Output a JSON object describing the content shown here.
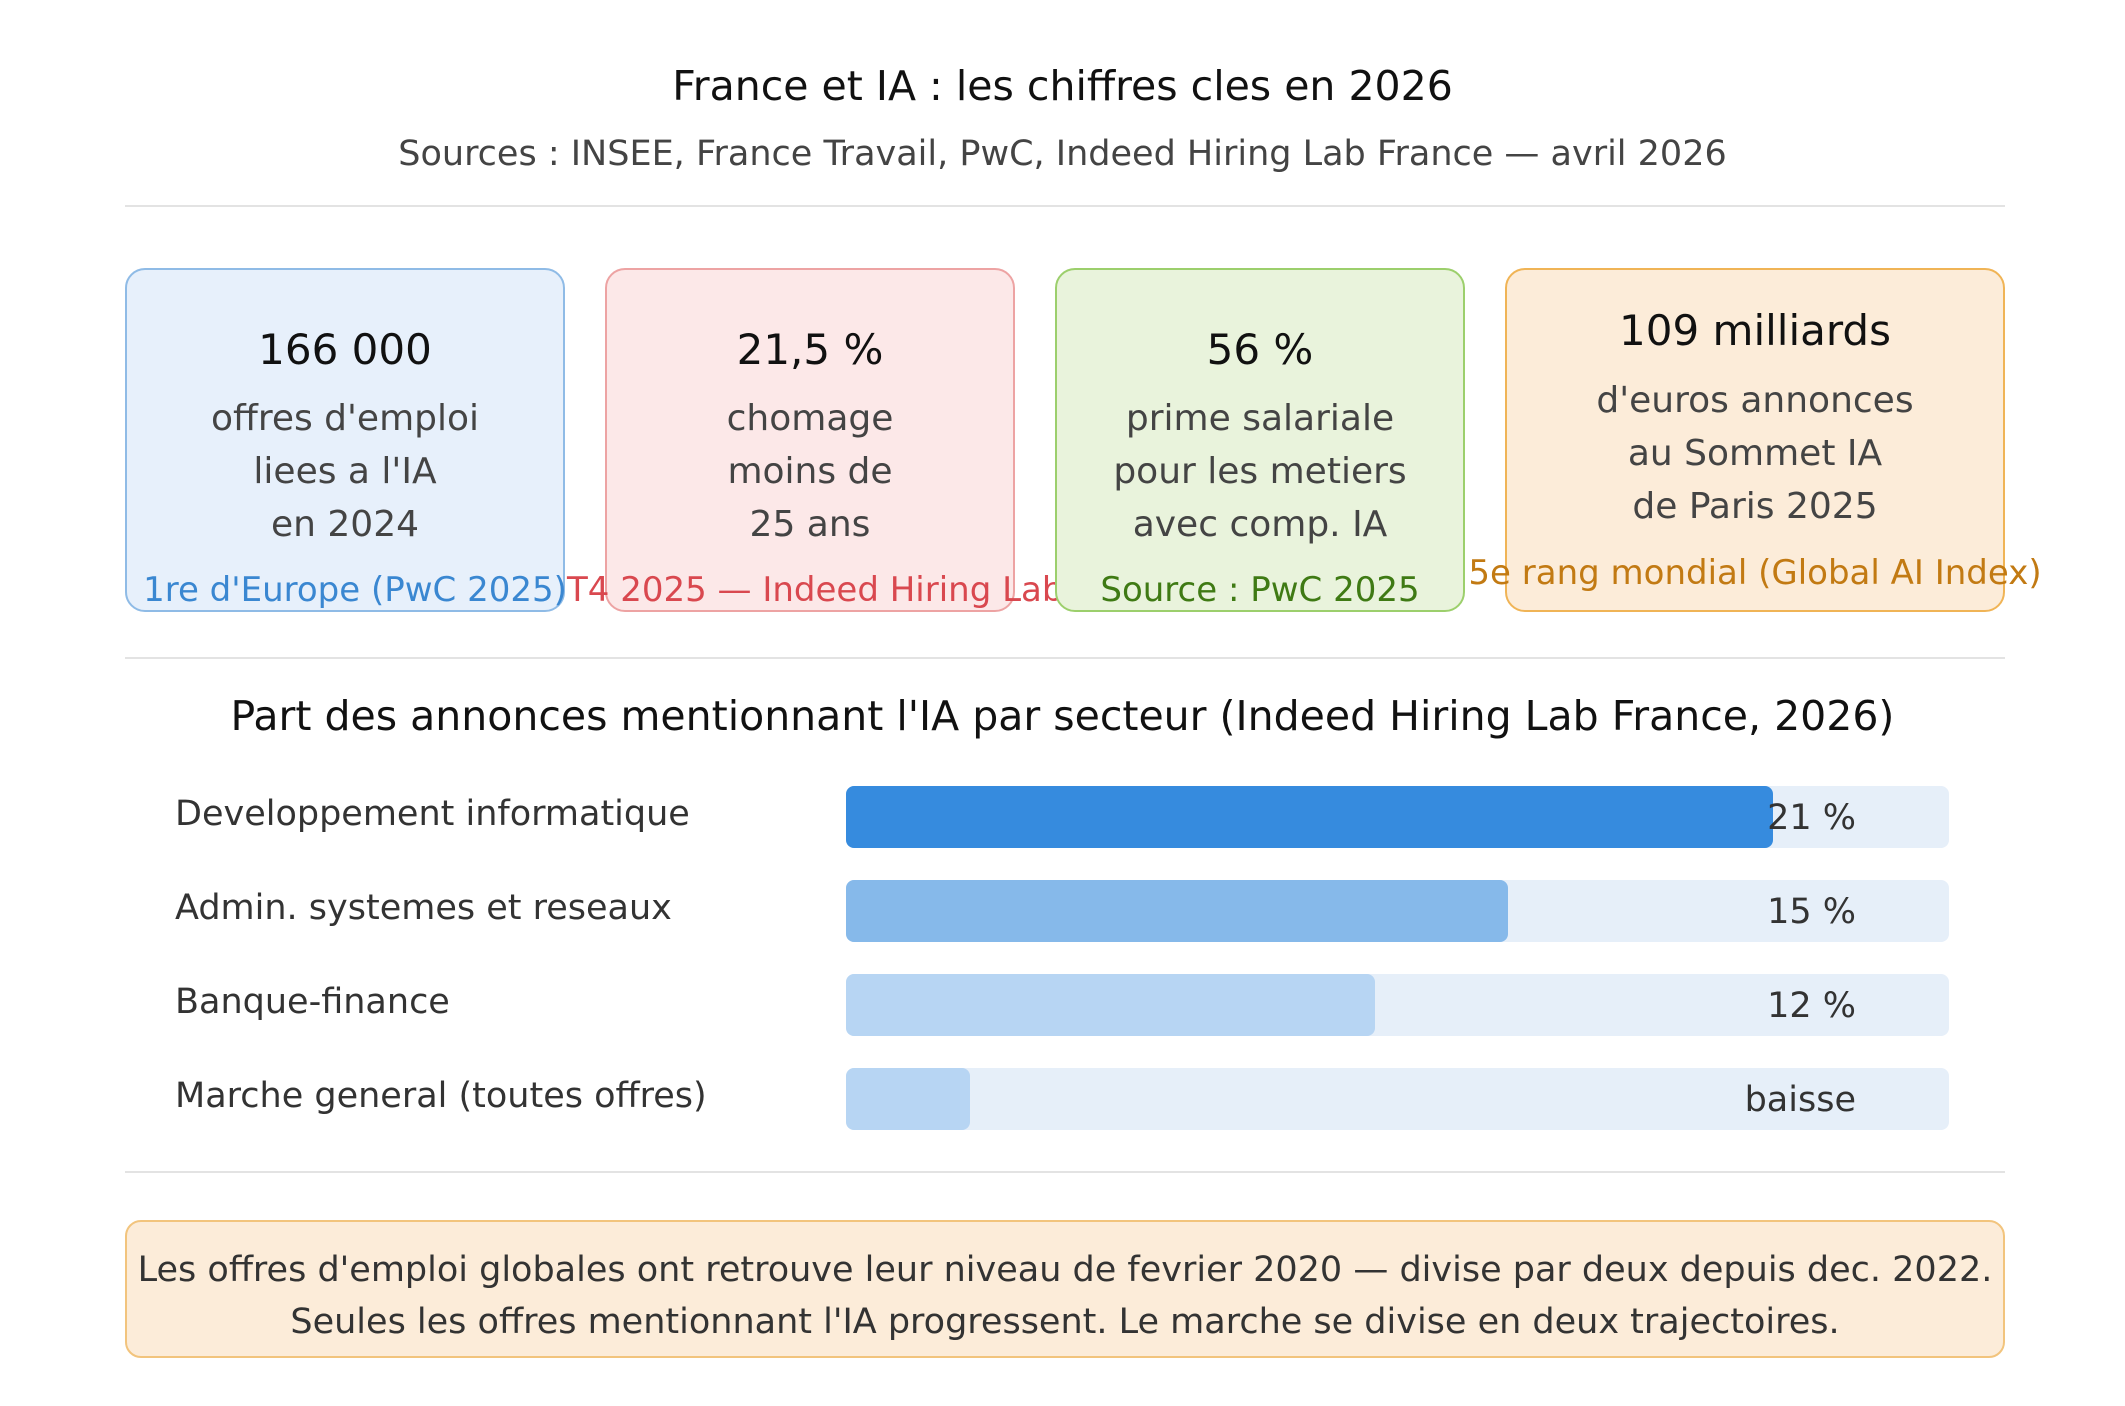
{
  "header": {
    "title": "France et IA : les chiffres cles en 2026",
    "subtitle": "Sources : INSEE, France Travail, PwC, Indeed Hiring Lab France — avril 2026"
  },
  "cards": [
    {
      "value": "166 000",
      "description": "offres d'emploi\nliees a l'IA\nen 2024",
      "note": "1re d'Europe (PwC 2025)",
      "bg_color": "#e7f0fb",
      "border_color": "#8fbbe6",
      "note_color": "#3a87d1"
    },
    {
      "value": "21,5 %",
      "description": "chomage\nmoins de\n25 ans",
      "note": "T4 2025 — Indeed Hiring Lab",
      "bg_color": "#fce8e8",
      "border_color": "#eda3a3",
      "note_color": "#d9484f"
    },
    {
      "value": "56 %",
      "description": "prime salariale\npour les metiers\navec comp. IA",
      "note": "Source : PwC 2025",
      "bg_color": "#e9f3dc",
      "border_color": "#9ccf6c",
      "note_color": "#3f7a14"
    },
    {
      "value": "109 milliards",
      "description": "d'euros annonces\nau Sommet IA\nde Paris 2025",
      "note": "5e rang mondial (Global AI Index)",
      "bg_color": "#fcecd9",
      "border_color": "#f0b456",
      "note_color": "#c27a13"
    }
  ],
  "chart_data": {
    "type": "bar",
    "orientation": "horizontal",
    "title": "Part des annonces mentionnant l'IA par secteur (Indeed Hiring Lab France, 2026)",
    "categories": [
      "Developpement informatique",
      "Admin. systemes et reseaux",
      "Banque-finance",
      "Marche general (toutes offres)"
    ],
    "values": [
      21,
      15,
      12,
      2.8
    ],
    "value_labels": [
      "21 %",
      "15 %",
      "12 %",
      "baisse"
    ],
    "xlim": [
      0,
      25
    ],
    "colors": [
      "#368bde",
      "#86b9ea",
      "#b7d5f3",
      "#b7d5f3"
    ],
    "track_color": "#e6eff9",
    "grid": false,
    "legend": "none"
  },
  "footer": {
    "line1": "Les offres d'emploi globales ont retrouve leur niveau de fevrier 2020 — divise par deux depuis dec. 2022.",
    "line2": "Seules les offres mentionnant l'IA progressent. Le marche se divise en deux trajectoires."
  }
}
